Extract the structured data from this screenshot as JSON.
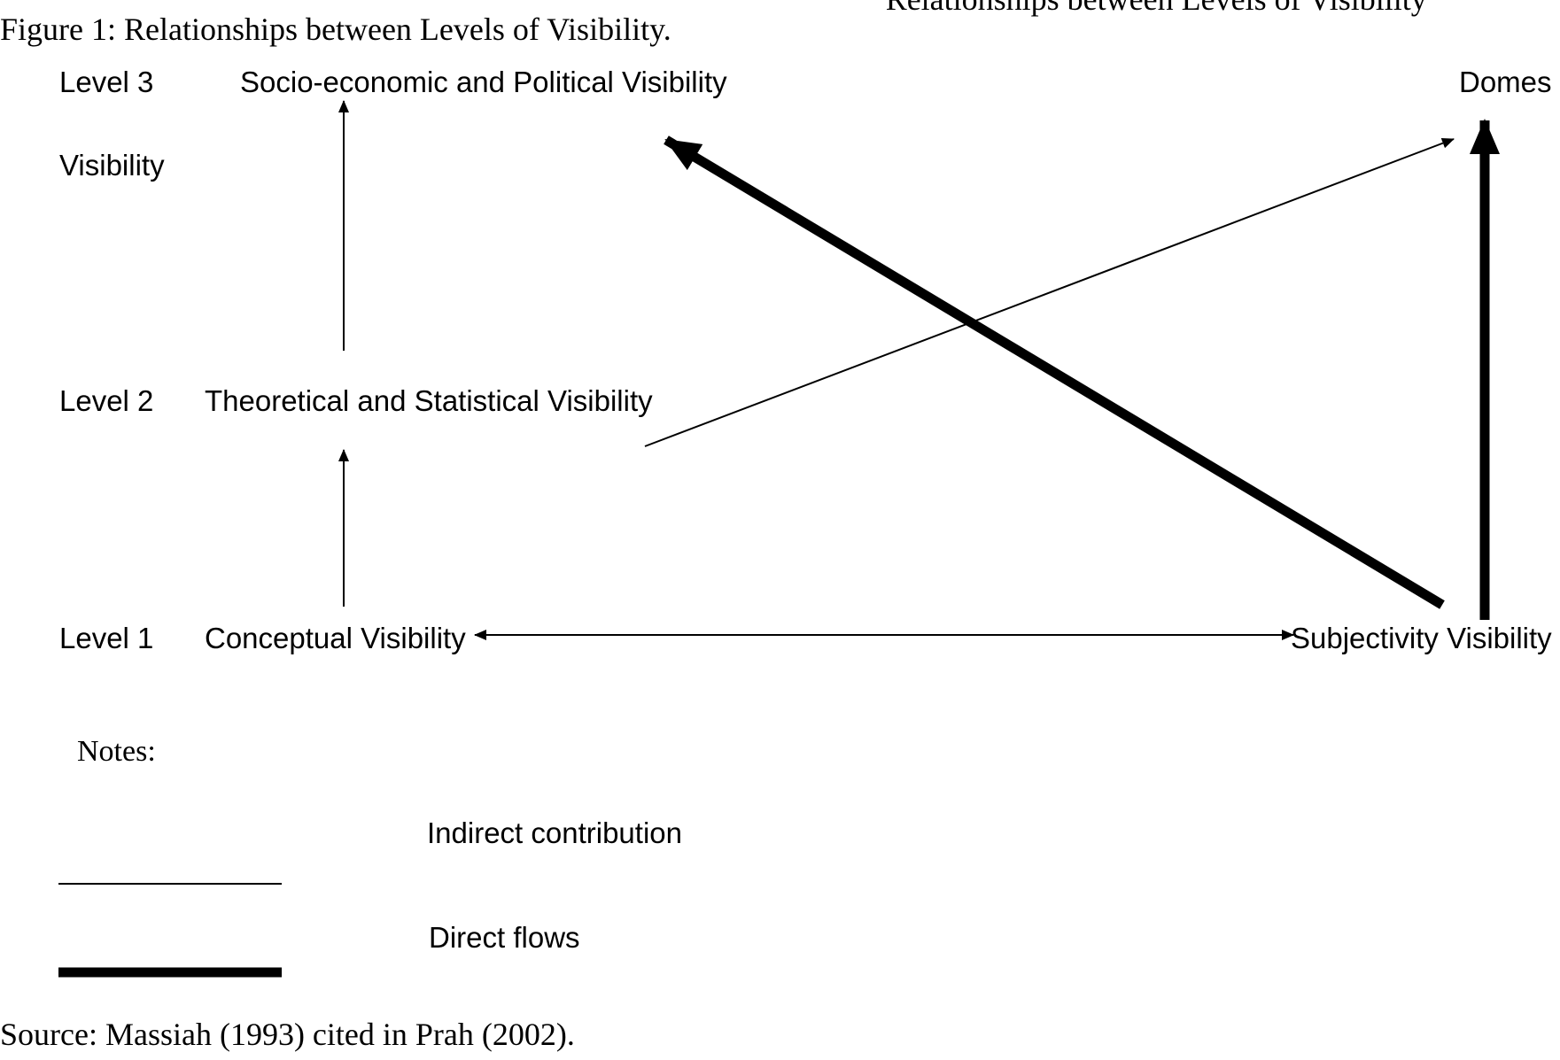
{
  "figure": {
    "top_text_fragment": "Relationships between Levels of Visibility",
    "caption": "Figure 1: Relationships between Levels of Visibility.",
    "source": "Source: Massiah (1993) cited in Prah (2002)."
  },
  "levels": {
    "level3": "Level 3",
    "level3_sub": "Visibility",
    "level2": "Level 2",
    "level1": "Level 1"
  },
  "nodes": {
    "socio_economic": "Socio-economic and Political Visibility",
    "theoretical": "Theoretical and Statistical Visibility",
    "conceptual": "Conceptual Visibility",
    "subjectivity": "Subjectivity Visibility",
    "domestic": "Domes"
  },
  "notes": {
    "title": "Notes:",
    "indirect": "Indirect contribution",
    "direct": "Direct flows"
  },
  "edges": [
    {
      "from": "conceptual",
      "to": "theoretical",
      "type": "indirect"
    },
    {
      "from": "theoretical",
      "to": "socio_economic",
      "type": "indirect"
    },
    {
      "from": "conceptual",
      "to": "subjectivity",
      "type": "indirect",
      "bidirectional": true
    },
    {
      "from": "theoretical",
      "to": "domestic",
      "type": "indirect"
    },
    {
      "from": "subjectivity",
      "to": "socio_economic",
      "type": "direct"
    },
    {
      "from": "subjectivity",
      "to": "domestic",
      "type": "direct"
    }
  ],
  "colors": {
    "ink": "#000000",
    "background": "#ffffff"
  }
}
